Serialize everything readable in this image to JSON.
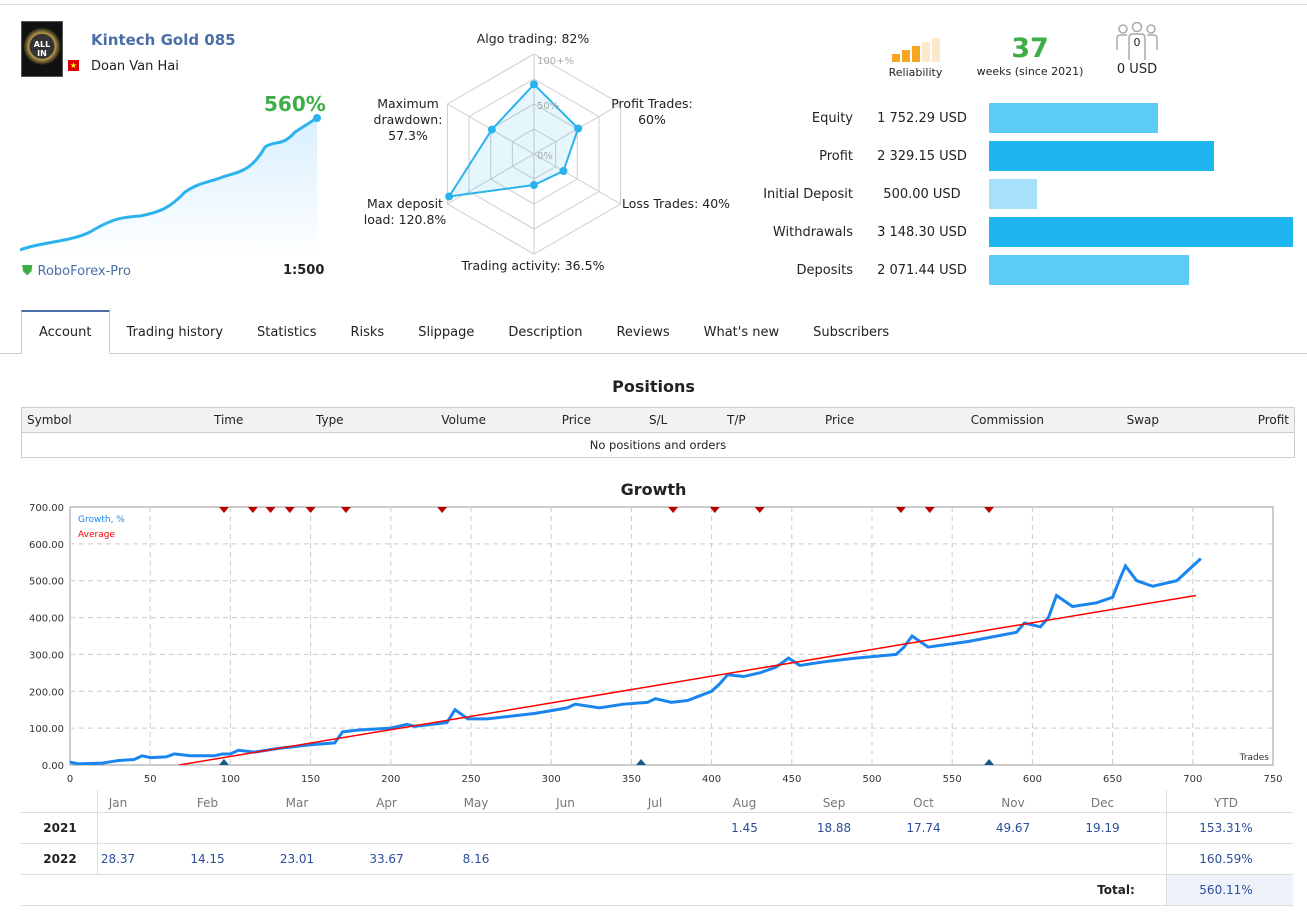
{
  "signal": {
    "name": "Kintech Gold 085",
    "author": "Doan Van Hai",
    "growth": "560%",
    "broker": "RoboForex-Pro",
    "leverage": "1:500",
    "avatar_text": "ALL IN"
  },
  "stats": {
    "reliability_label": "Reliability",
    "reliability_level": 2,
    "reliability_max": 5,
    "weeks": "37",
    "weeks_label": "weeks (since 2021)",
    "subscribers": "0",
    "subscribers_usd": "0 USD",
    "accent": "#f5a623"
  },
  "radar": {
    "labels": [
      {
        "l1": "Algo trading: 82%"
      },
      {
        "l1": "Profit Trades:",
        "l2": "60%"
      },
      {
        "l1": "Loss Trades: 40%"
      },
      {
        "l1": "Trading activity: 36.5%"
      },
      {
        "l1": "Max deposit",
        "l2": "load: 120.8%"
      },
      {
        "l1": "Maximum",
        "l2": "drawdown:",
        "l3": "57.3%"
      }
    ],
    "values": [
      82,
      60,
      40,
      36.5,
      100,
      57.3
    ],
    "scale": [
      "100+%",
      "50%",
      "0%"
    ]
  },
  "finance": [
    {
      "label": "Equity",
      "value": "1 752.29 USD",
      "amount": 1752.29,
      "color": "#5ccbf5"
    },
    {
      "label": "Profit",
      "value": "2 329.15 USD",
      "amount": 2329.15,
      "color": "#1fb6f0"
    },
    {
      "label": "Initial Deposit",
      "value": "500.00 USD",
      "amount": 500,
      "color": "#a6e1f9"
    },
    {
      "label": "Withdrawals",
      "value": "3 148.30 USD",
      "amount": 3148.3,
      "color": "#1fb6f0"
    },
    {
      "label": "Deposits",
      "value": "2 071.44 USD",
      "amount": 2071.44,
      "color": "#5ccbf5"
    }
  ],
  "tabs": [
    "Account",
    "Trading history",
    "Statistics",
    "Risks",
    "Slippage",
    "Description",
    "Reviews",
    "What's new",
    "Subscribers"
  ],
  "positions": {
    "title": "Positions",
    "columns": [
      "Symbol",
      "Time",
      "Type",
      "Volume",
      "Price",
      "S/L",
      "T/P",
      "Price",
      "Commission",
      "Swap",
      "Profit"
    ],
    "empty": "No positions and orders"
  },
  "chart_data": {
    "type": "line",
    "title": "Growth",
    "xlabel": "Trades",
    "xlim": [
      0,
      750
    ],
    "ylim": [
      0,
      700
    ],
    "xticks": [
      "0",
      "50",
      "100",
      "150",
      "200",
      "250",
      "300",
      "350",
      "400",
      "450",
      "500",
      "550",
      "600",
      "650",
      "700",
      "750"
    ],
    "yticks": [
      "0.00",
      "100.00",
      "200.00",
      "300.00",
      "400.00",
      "500.00",
      "600.00",
      "700.00"
    ],
    "grid": true,
    "legend": "top-left",
    "series": [
      {
        "name": "Growth, %",
        "color": "#1a85ef",
        "x": [
          0,
          5,
          20,
          30,
          40,
          45,
          50,
          60,
          65,
          75,
          90,
          95,
          100,
          105,
          115,
          130,
          150,
          165,
          170,
          180,
          200,
          210,
          215,
          235,
          240,
          248,
          260,
          290,
          310,
          315,
          330,
          345,
          360,
          365,
          375,
          385,
          400,
          405,
          410,
          420,
          430,
          440,
          448,
          455,
          470,
          490,
          515,
          520,
          525,
          535,
          560,
          590,
          595,
          605,
          610,
          615,
          625,
          640,
          650,
          655,
          658,
          665,
          675,
          690,
          700,
          705
        ],
        "y": [
          8,
          3,
          5,
          12,
          15,
          25,
          20,
          22,
          30,
          25,
          25,
          30,
          30,
          40,
          35,
          45,
          55,
          60,
          90,
          95,
          100,
          110,
          105,
          115,
          150,
          125,
          125,
          140,
          155,
          165,
          155,
          165,
          170,
          180,
          170,
          175,
          200,
          220,
          245,
          240,
          250,
          265,
          290,
          270,
          280,
          290,
          300,
          320,
          350,
          320,
          335,
          360,
          385,
          375,
          400,
          460,
          430,
          440,
          455,
          510,
          540,
          500,
          485,
          500,
          540,
          560
        ]
      },
      {
        "name": "Average",
        "color": "#ff0000",
        "x": [
          68,
          702
        ],
        "y": [
          0,
          460
        ]
      }
    ],
    "markers_top": [
      96,
      114,
      125,
      137,
      150,
      172,
      232,
      376,
      402,
      430,
      518,
      536,
      573
    ],
    "markers_bottom": [
      96,
      356,
      573
    ]
  },
  "monthly": {
    "months": [
      "Jan",
      "Feb",
      "Mar",
      "Apr",
      "May",
      "Jun",
      "Jul",
      "Aug",
      "Sep",
      "Oct",
      "Nov",
      "Dec"
    ],
    "ytd_label": "YTD",
    "rows": [
      {
        "year": "2021",
        "values": [
          "",
          "",
          "",
          "",
          "",
          "",
          "",
          "1.45",
          "18.88",
          "17.74",
          "49.67",
          "19.19"
        ],
        "ytd": "153.31%"
      },
      {
        "year": "2022",
        "values": [
          "28.37",
          "14.15",
          "23.01",
          "33.67",
          "8.16",
          "",
          "",
          "",
          "",
          "",
          "",
          ""
        ],
        "ytd": "160.59%"
      }
    ],
    "total_label": "Total:",
    "total": "560.11%"
  }
}
